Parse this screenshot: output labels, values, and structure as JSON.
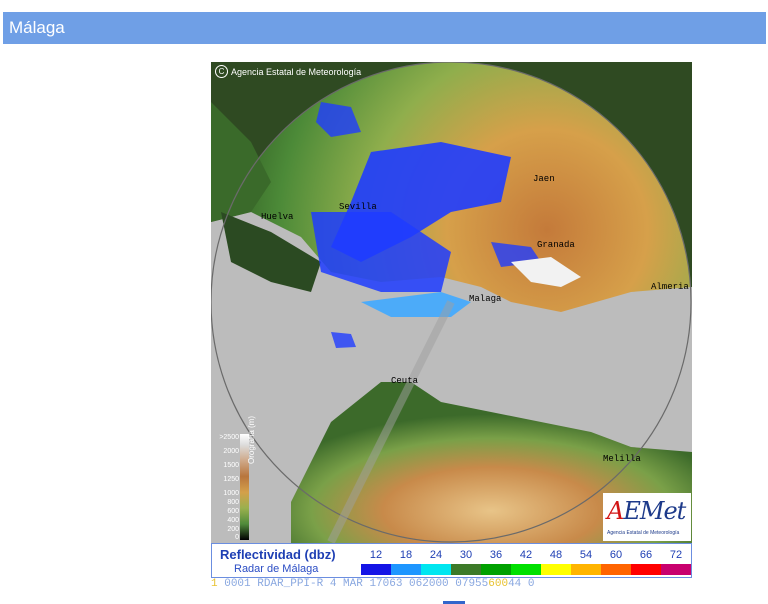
{
  "page": {
    "title": "Málaga"
  },
  "radar": {
    "copyright_symbol": "C",
    "copyright": "Agencia Estatal de Meteorología",
    "cities": [
      "Jaen",
      "Granada",
      "Malaga",
      "Ceuta",
      "Melilla",
      "Sevilla",
      "Huelva",
      "Almeria"
    ],
    "elevation": {
      "title": "Orografía (m)",
      "labels": [
        ">2500",
        "2000",
        "1500",
        "1250",
        "1000",
        "800",
        "600",
        "400",
        "200",
        "0"
      ]
    },
    "logo": {
      "mark_a": "A",
      "mark_rest": "EMet",
      "subtitle": "Agencia Estatal de Meteorología"
    }
  },
  "legend": {
    "title": "Reflectividad (dbz)",
    "subtitle": "Radar de Málaga",
    "scale": [
      "12",
      "18",
      "24",
      "30",
      "36",
      "42",
      "48",
      "54",
      "60",
      "66",
      "72"
    ],
    "colors": [
      "#1414e6",
      "#1e96ff",
      "#00e6f0",
      "#3c7a28",
      "#00a000",
      "#00e000",
      "#ffff00",
      "#ffb400",
      "#ff6400",
      "#ff0000",
      "#c8006e"
    ]
  },
  "ticker": {
    "prefix": "1",
    "main": "0001 RDAR_PPI-R    4 MAR 17063 062000 07955",
    "highlight": "600",
    "tail": "44 0"
  }
}
